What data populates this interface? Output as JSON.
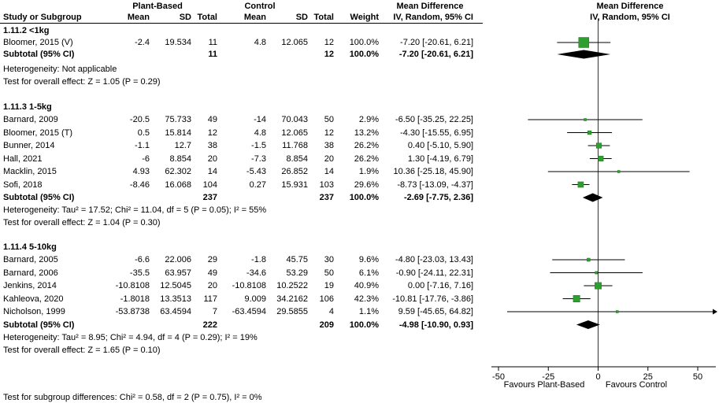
{
  "header": {
    "study_col": "Study or Subgroup",
    "group1_label": "Plant-Based",
    "group2_label": "Control",
    "mean_label": "Mean",
    "sd_label": "SD",
    "total_label": "Total",
    "weight_label": "Weight",
    "md_label": "Mean Difference",
    "md_method": "IV, Random, 95% CI"
  },
  "footer": {
    "subgroup_test": "Test for subgroup differences: Chi² = 0.58, df = 2 (P = 0.75), I² = 0%"
  },
  "colors": {
    "marker_green": "#2E9E2E",
    "marker_green_border": "#1C7A1C",
    "diamond_black": "#000000",
    "line_black": "#000000"
  },
  "chart_data": {
    "type": "forest",
    "effect_measure": "Mean Difference",
    "model": "IV, Random, 95% CI",
    "axis": {
      "ticks": [
        -50,
        -25,
        0,
        25,
        50
      ],
      "xmin": -55,
      "xmax": 60,
      "label_left": "Favours Plant-Based",
      "label_right": "Favours Control"
    },
    "subgroups": [
      {
        "title": "1.11.2 <1kg",
        "studies": [
          {
            "name": "Bloomer, 2015 (V)",
            "mean1": "-2.4",
            "sd1": "19.534",
            "n1": "11",
            "mean2": "4.8",
            "sd2": "12.065",
            "n2": "12",
            "weight": "100.0%",
            "weight_pct": 100.0,
            "ci_text": "-7.20 [-20.61, 6.21]",
            "effect": -7.2,
            "lo": -20.61,
            "hi": 6.21
          }
        ],
        "subtotal": {
          "label": "Subtotal (95% CI)",
          "n1": "11",
          "n2": "12",
          "weight": "100.0%",
          "ci_text": "-7.20 [-20.61, 6.21]",
          "effect": -7.2,
          "lo": -20.61,
          "hi": 6.21
        },
        "heterogeneity": "Heterogeneity: Not applicable",
        "overall_test": "Test for overall effect: Z = 1.05 (P = 0.29)"
      },
      {
        "title": "1.11.3 1-5kg",
        "studies": [
          {
            "name": "Barnard, 2009",
            "mean1": "-20.5",
            "sd1": "75.733",
            "n1": "49",
            "mean2": "-14",
            "sd2": "70.043",
            "n2": "50",
            "weight": "2.9%",
            "weight_pct": 2.9,
            "ci_text": "-6.50 [-35.25, 22.25]",
            "effect": -6.5,
            "lo": -35.25,
            "hi": 22.25
          },
          {
            "name": "Bloomer, 2015 (T)",
            "mean1": "0.5",
            "sd1": "15.814",
            "n1": "12",
            "mean2": "4.8",
            "sd2": "12.065",
            "n2": "12",
            "weight": "13.2%",
            "weight_pct": 13.2,
            "ci_text": "-4.30 [-15.55, 6.95]",
            "effect": -4.3,
            "lo": -15.55,
            "hi": 6.95
          },
          {
            "name": "Bunner, 2014",
            "mean1": "-1.1",
            "sd1": "12.7",
            "n1": "38",
            "mean2": "-1.5",
            "sd2": "11.768",
            "n2": "38",
            "weight": "26.2%",
            "weight_pct": 26.2,
            "ci_text": "0.40 [-5.10, 5.90]",
            "effect": 0.4,
            "lo": -5.1,
            "hi": 5.9
          },
          {
            "name": "Hall, 2021",
            "mean1": "-6",
            "sd1": "8.854",
            "n1": "20",
            "mean2": "-7.3",
            "sd2": "8.854",
            "n2": "20",
            "weight": "26.2%",
            "weight_pct": 26.2,
            "ci_text": "1.30 [-4.19, 6.79]",
            "effect": 1.3,
            "lo": -4.19,
            "hi": 6.79
          },
          {
            "name": "Macklin, 2015",
            "mean1": "4.93",
            "sd1": "62.302",
            "n1": "14",
            "mean2": "-5.43",
            "sd2": "26.852",
            "n2": "14",
            "weight": "1.9%",
            "weight_pct": 1.9,
            "ci_text": "10.36 [-25.18, 45.90]",
            "effect": 10.36,
            "lo": -25.18,
            "hi": 45.9
          },
          {
            "name": "Sofi, 2018",
            "mean1": "-8.46",
            "sd1": "16.068",
            "n1": "104",
            "mean2": "0.27",
            "sd2": "15.931",
            "n2": "103",
            "weight": "29.6%",
            "weight_pct": 29.6,
            "ci_text": "-8.73 [-13.09, -4.37]",
            "effect": -8.73,
            "lo": -13.09,
            "hi": -4.37
          }
        ],
        "subtotal": {
          "label": "Subtotal (95% CI)",
          "n1": "237",
          "n2": "237",
          "weight": "100.0%",
          "ci_text": "-2.69 [-7.75, 2.36]",
          "effect": -2.69,
          "lo": -7.75,
          "hi": 2.36
        },
        "heterogeneity": "Heterogeneity: Tau² = 17.52; Chi² = 11.04, df = 5 (P = 0.05); I² = 55%",
        "overall_test": "Test for overall effect: Z = 1.04 (P = 0.30)"
      },
      {
        "title": "1.11.4 5-10kg",
        "studies": [
          {
            "name": "Barnard, 2005",
            "mean1": "-6.6",
            "sd1": "22.006",
            "n1": "29",
            "mean2": "-1.8",
            "sd2": "45.75",
            "n2": "30",
            "weight": "9.6%",
            "weight_pct": 9.6,
            "ci_text": "-4.80 [-23.03, 13.43]",
            "effect": -4.8,
            "lo": -23.03,
            "hi": 13.43
          },
          {
            "name": "Barnard, 2006",
            "mean1": "-35.5",
            "sd1": "63.957",
            "n1": "49",
            "mean2": "-34.6",
            "sd2": "53.29",
            "n2": "50",
            "weight": "6.1%",
            "weight_pct": 6.1,
            "ci_text": "-0.90 [-24.11, 22.31]",
            "effect": -0.9,
            "lo": -24.11,
            "hi": 22.31
          },
          {
            "name": "Jenkins, 2014",
            "mean1": "-10.8108",
            "sd1": "12.5045",
            "n1": "20",
            "mean2": "-10.8108",
            "sd2": "10.2522",
            "n2": "19",
            "weight": "40.9%",
            "weight_pct": 40.9,
            "ci_text": "0.00 [-7.16, 7.16]",
            "effect": 0.0,
            "lo": -7.16,
            "hi": 7.16
          },
          {
            "name": "Kahleova, 2020",
            "mean1": "-1.8018",
            "sd1": "13.3513",
            "n1": "117",
            "mean2": "9.009",
            "sd2": "34.2162",
            "n2": "106",
            "weight": "42.3%",
            "weight_pct": 42.3,
            "ci_text": "-10.81 [-17.76, -3.86]",
            "effect": -10.81,
            "lo": -17.76,
            "hi": -3.86
          },
          {
            "name": "Nicholson, 1999",
            "mean1": "-53.8738",
            "sd1": "63.4594",
            "n1": "7",
            "mean2": "-63.4594",
            "sd2": "29.5855",
            "n2": "4",
            "weight": "1.1%",
            "weight_pct": 1.1,
            "ci_text": "9.59 [-45.65, 64.82]",
            "effect": 9.59,
            "lo": -45.65,
            "hi": 64.82
          }
        ],
        "subtotal": {
          "label": "Subtotal (95% CI)",
          "n1": "222",
          "n2": "209",
          "weight": "100.0%",
          "ci_text": "-4.98 [-10.90, 0.93]",
          "effect": -4.98,
          "lo": -10.9,
          "hi": 0.93
        },
        "heterogeneity": "Heterogeneity: Tau² = 8.95; Chi² = 4.94, df = 4 (P = 0.29); I² = 19%",
        "overall_test": "Test for overall effect: Z = 1.65 (P = 0.10)"
      }
    ]
  }
}
